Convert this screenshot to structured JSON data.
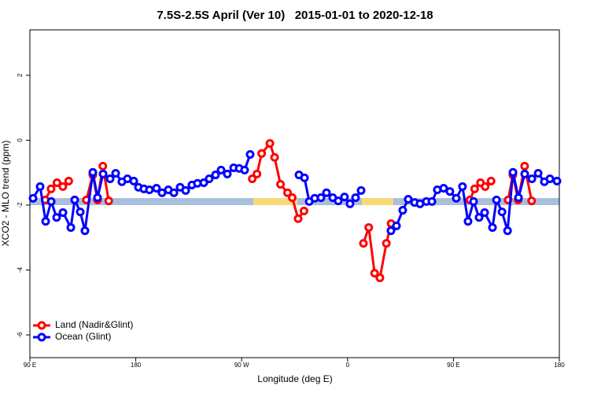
{
  "chart_data": {
    "type": "line",
    "title": "7.5S-2.5S April (Ver 10)   2015-01-01 to 2020-12-18",
    "x_label": "Longitude (deg E)",
    "y_label": "XCO2 - MLO trend (ppm)",
    "xlim": [
      90,
      540
    ],
    "xticks": [
      {
        "value": 90,
        "label": "90 E"
      },
      180,
      {
        "value": 270,
        "label": "90 W"
      },
      {
        "value": 360,
        "label": "0"
      },
      {
        "value": 450,
        "label": "90 E"
      },
      {
        "value": 540,
        "label": "180"
      }
    ],
    "ylim": [
      -6.7,
      3.4
    ],
    "yticks": [
      2,
      0,
      -2,
      -4,
      -6
    ],
    "legend": "bottomleft",
    "series": [
      {
        "name": "Land (Nadir&Glint)",
        "color": "#ff0000",
        "x": [
          103,
          108,
          113,
          118,
          123,
          null,
          138,
          143.5,
          147.5,
          152,
          157,
          null,
          279,
          283,
          287,
          294,
          298,
          303,
          309,
          313,
          318,
          323,
          null,
          373.5,
          378,
          383,
          387.5,
          393,
          397,
          null,
          464,
          468,
          473,
          477,
          482,
          null,
          496.5,
          500.5,
          505,
          510.5,
          516.5
        ],
        "values": [
          -1.84,
          -1.5,
          -1.31,
          -1.43,
          -1.26,
          null,
          -1.84,
          -1.07,
          -1.84,
          -0.8,
          -1.87,
          null,
          -1.19,
          -1.04,
          -0.41,
          -0.1,
          -0.53,
          -1.36,
          -1.62,
          -1.77,
          -2.42,
          -2.18,
          null,
          -3.18,
          -2.69,
          -4.1,
          -4.24,
          -3.18,
          -2.57,
          null,
          -1.84,
          -1.5,
          -1.31,
          -1.43,
          -1.26,
          null,
          -1.84,
          -1.07,
          -1.84,
          -0.8,
          -1.87
        ]
      },
      {
        "name": "Ocean (Glint)",
        "color": "#0000ff",
        "x": [
          92.7,
          98.7,
          103.4,
          108.1,
          112.7,
          118.1,
          124.8,
          128.1,
          132.8,
          136.8,
          143.5,
          147.5,
          152.2,
          158.2,
          162.9,
          168.2,
          172.9,
          178.3,
          182.3,
          186.9,
          191.6,
          197.6,
          202.3,
          207.7,
          212.4,
          217.7,
          222.4,
          227.7,
          232.4,
          237.8,
          242.4,
          247.8,
          252.5,
          257.8,
          263.2,
          267.9,
          272.5,
          277.2,
          null,
          318.7,
          323.4,
          327.4,
          332.1,
          337.4,
          342.1,
          347.4,
          352.1,
          357.4,
          362.1,
          366.8,
          371.5,
          null,
          396.9,
          401.6,
          406.9,
          411.6,
          417,
          421.6,
          427,
          431.7,
          436.3,
          441.7,
          447,
          452.4,
          457.7,
          462.4,
          467.1,
          471.8,
          476.5,
          483.2,
          486.6,
          491.3,
          496,
          500.6,
          505.3,
          510.6,
          516.7,
          522,
          527.3,
          532,
          538
        ],
        "values": [
          -1.79,
          -1.43,
          -2.5,
          -1.89,
          -2.38,
          -2.23,
          -2.69,
          -1.84,
          -2.21,
          -2.79,
          -0.99,
          -1.77,
          -1.04,
          -1.19,
          -1.02,
          -1.28,
          -1.19,
          -1.26,
          -1.45,
          -1.5,
          -1.53,
          -1.48,
          -1.62,
          -1.53,
          -1.62,
          -1.45,
          -1.55,
          -1.38,
          -1.33,
          -1.31,
          -1.19,
          -1.07,
          -0.92,
          -1.04,
          -0.85,
          -0.87,
          -0.92,
          -0.44,
          null,
          -1.07,
          -1.16,
          -1.89,
          -1.79,
          -1.77,
          -1.62,
          -1.77,
          -1.87,
          -1.75,
          -1.96,
          -1.77,
          -1.55,
          null,
          -2.79,
          -2.64,
          -2.16,
          -1.82,
          -1.92,
          -1.96,
          -1.89,
          -1.89,
          -1.53,
          -1.48,
          -1.58,
          -1.79,
          -1.43,
          -2.5,
          -1.89,
          -2.38,
          -2.23,
          -2.69,
          -1.84,
          -2.21,
          -2.79,
          -0.99,
          -1.77,
          -1.04,
          -1.19,
          -1.02,
          -1.28,
          -1.19,
          -1.26
        ]
      }
    ]
  }
}
